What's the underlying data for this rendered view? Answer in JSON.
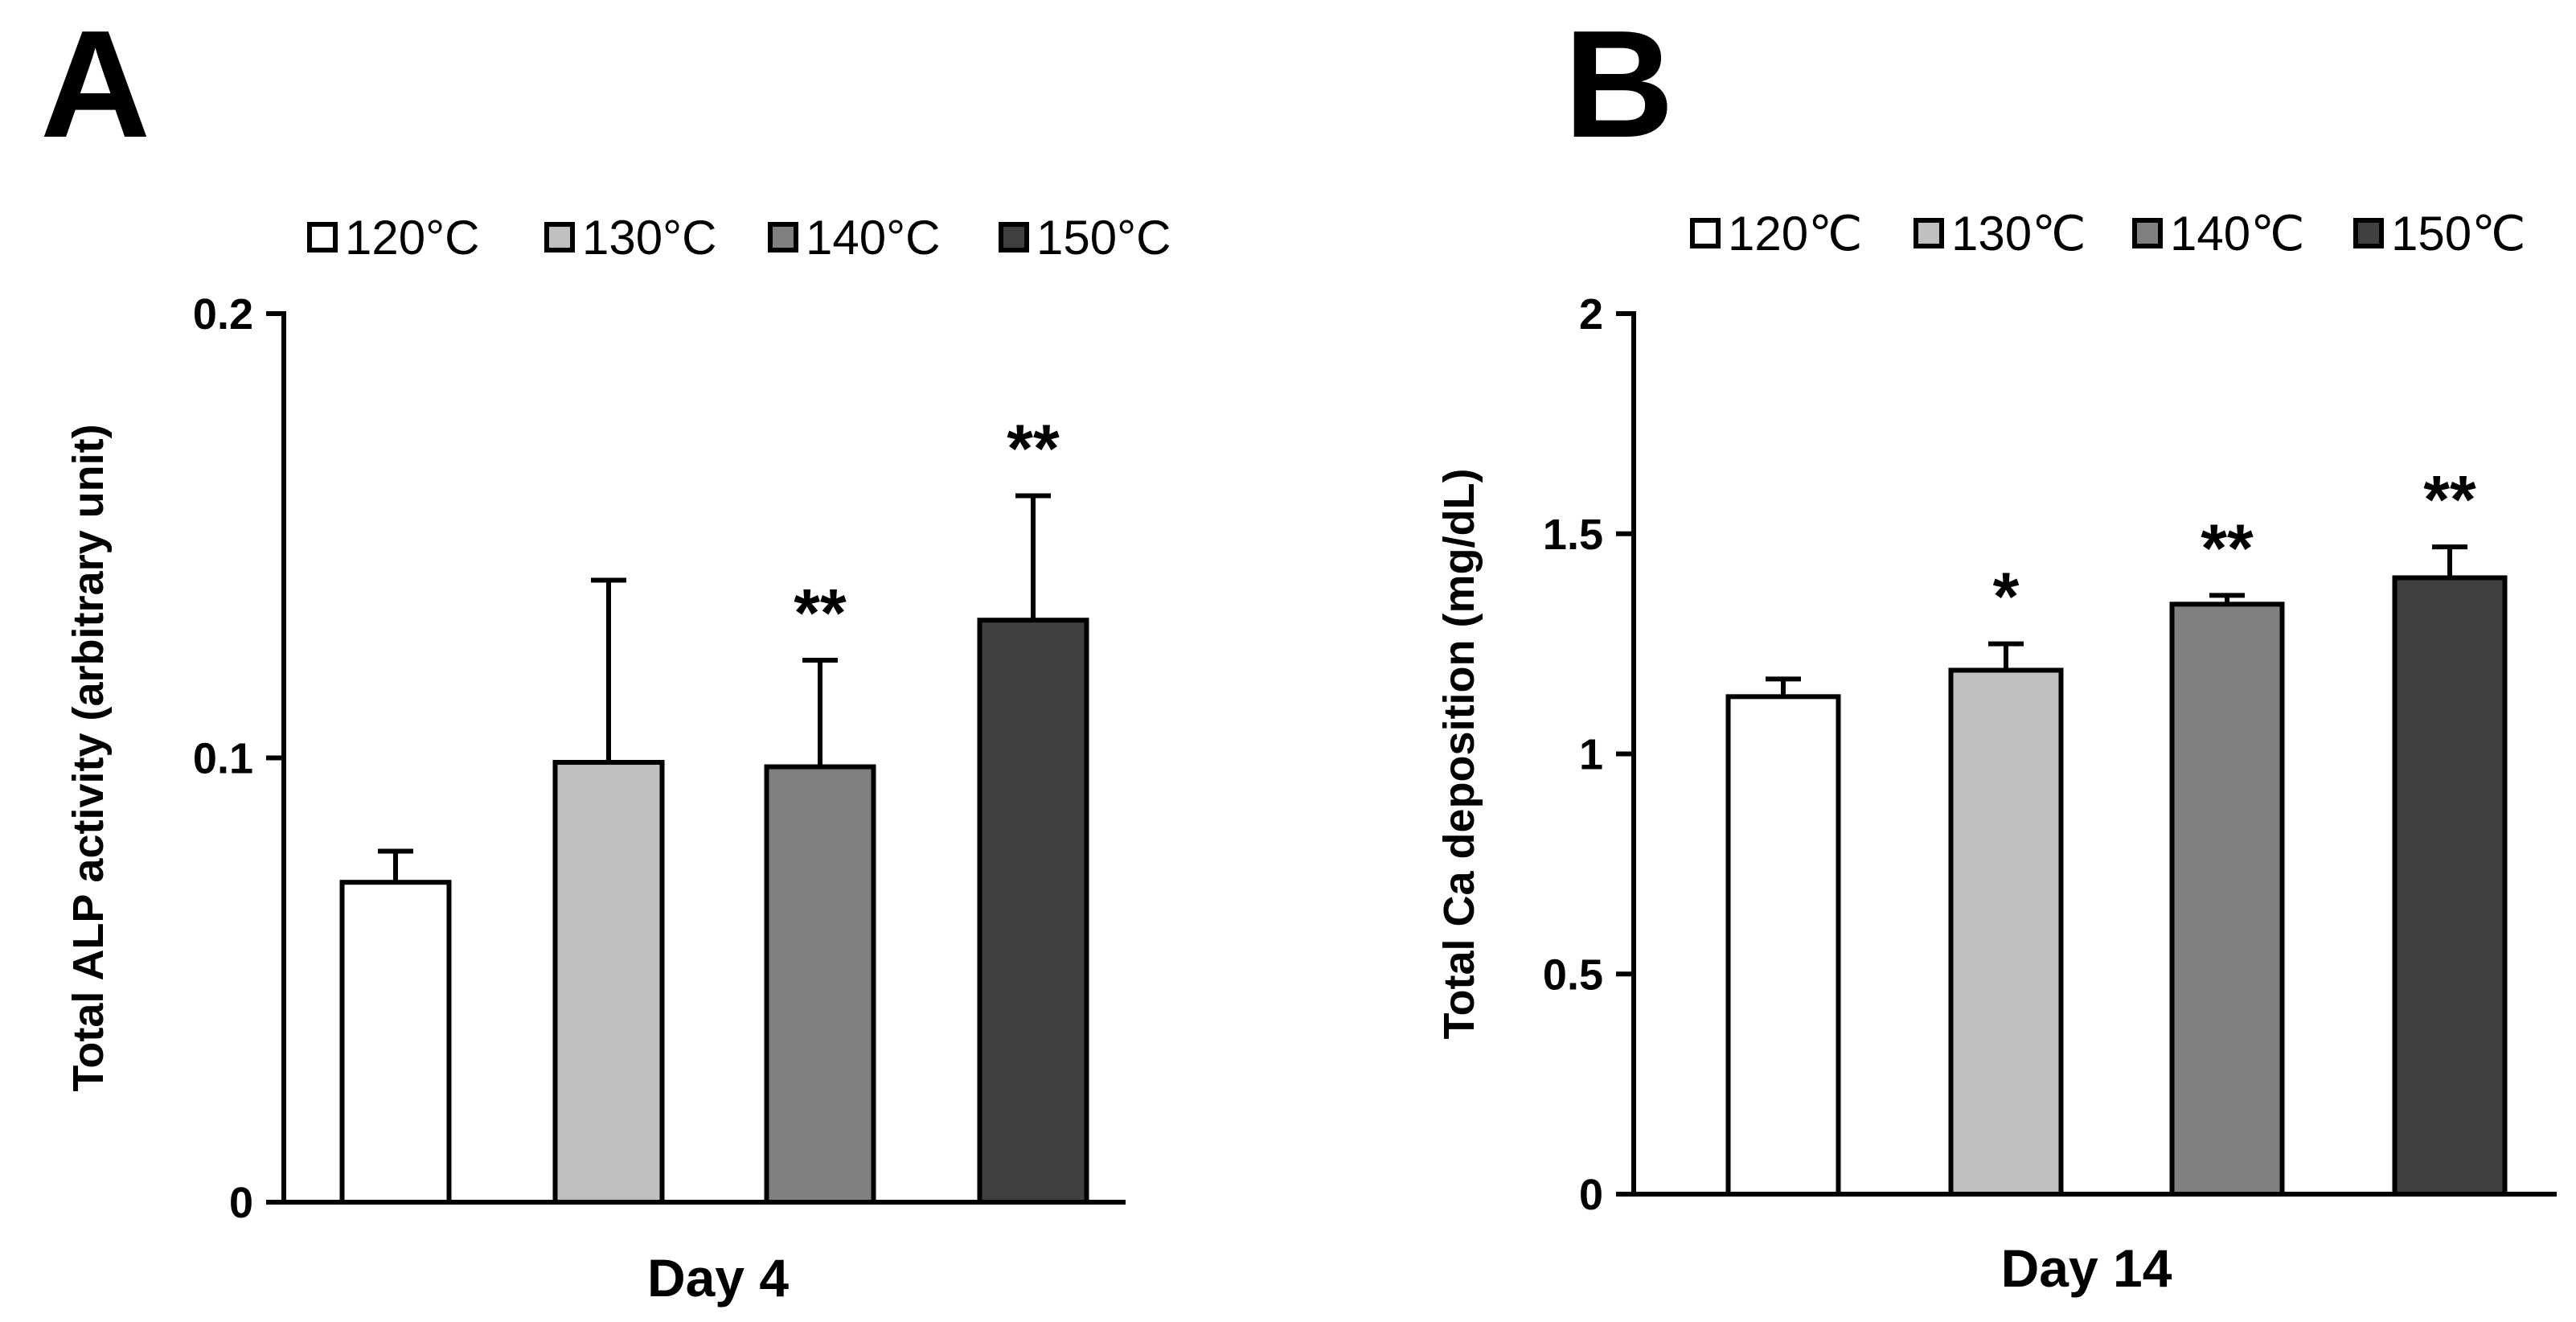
{
  "chart_data": [
    {
      "panel": "A",
      "type": "bar",
      "title": "",
      "xlabel": "Day 4",
      "ylabel": "Total ALP activity (arbitrary unit)",
      "ylim": [
        0,
        0.2
      ],
      "yticks": [
        0,
        0.1,
        0.2
      ],
      "ytick_labels": [
        "0",
        "0.1",
        "0.2"
      ],
      "grid": false,
      "legend_position": "top",
      "categories": [
        "120°C",
        "130°C",
        "140°C",
        "150°C"
      ],
      "values": [
        0.072,
        0.099,
        0.098,
        0.131
      ],
      "errors": [
        0.007,
        0.041,
        0.024,
        0.028
      ],
      "colors": [
        "#ffffff",
        "#c0c0c0",
        "#808080",
        "#404040"
      ],
      "significance": [
        "",
        "",
        "**",
        "**"
      ]
    },
    {
      "panel": "B",
      "type": "bar",
      "title": "",
      "xlabel": "Day 14",
      "ylabel": "Total Ca deposition (mg/dL)",
      "ylim": [
        0,
        2
      ],
      "yticks": [
        0,
        0.5,
        1,
        1.5,
        2
      ],
      "ytick_labels": [
        "0",
        "0.5",
        "1",
        "1.5",
        "2"
      ],
      "grid": false,
      "legend_position": "top",
      "categories": [
        "120℃",
        "130℃",
        "140℃",
        "150℃"
      ],
      "values": [
        1.13,
        1.19,
        1.34,
        1.4
      ],
      "errors": [
        0.04,
        0.06,
        0.02,
        0.07
      ],
      "colors": [
        "#ffffff",
        "#c0c0c0",
        "#808080",
        "#404040"
      ],
      "significance": [
        "",
        "*",
        "**",
        "**"
      ]
    }
  ]
}
